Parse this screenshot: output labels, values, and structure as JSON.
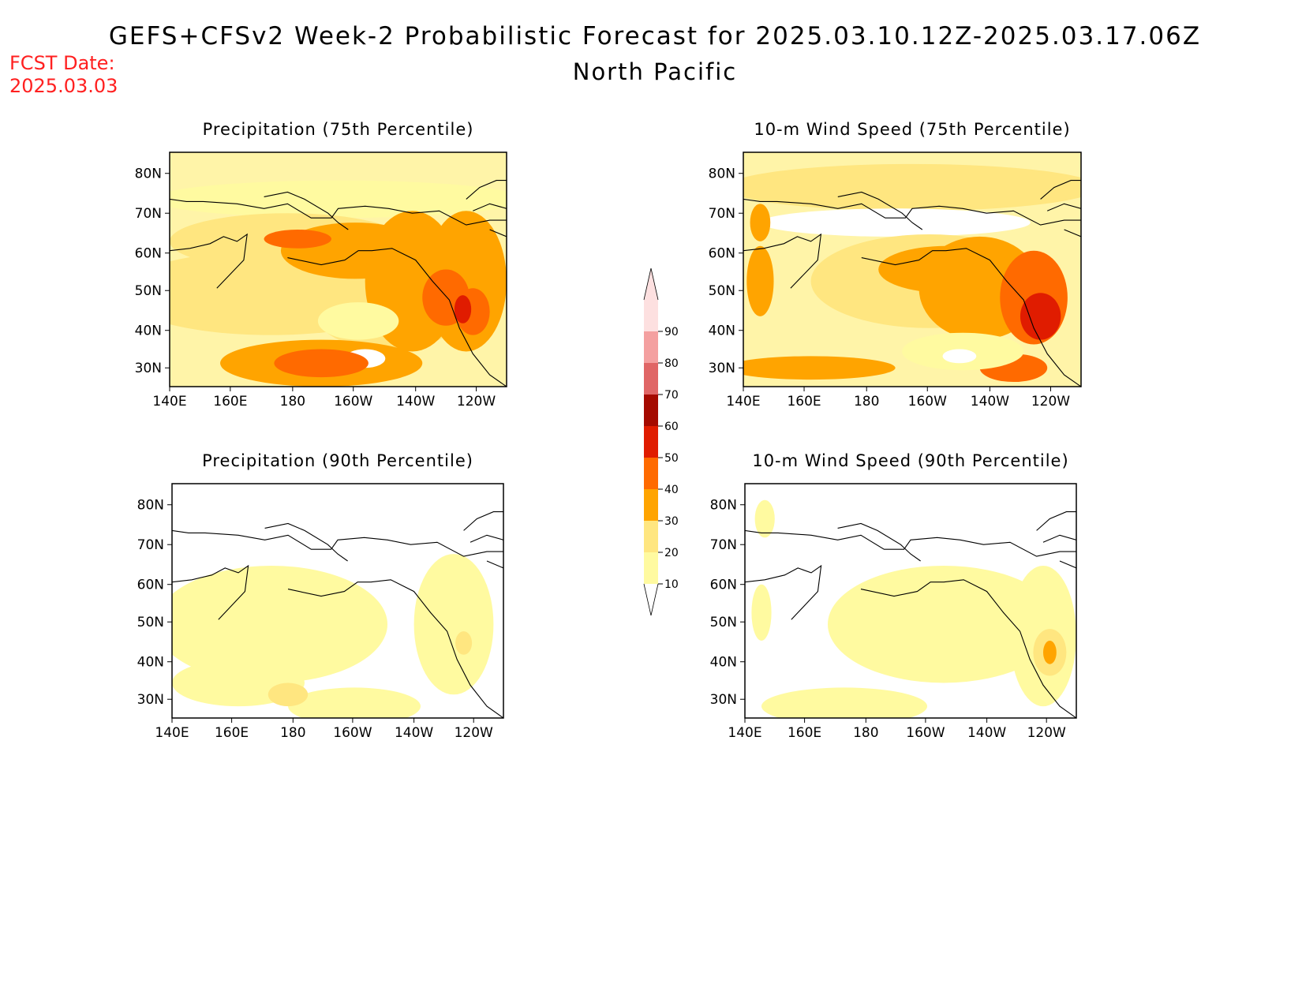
{
  "header": {
    "title": "GEFS+CFSv2 Week-2 Probabilistic Forecast for 2025.03.10.12Z-2025.03.17.06Z",
    "region": "North Pacific",
    "fcst_label": "FCST Date:",
    "fcst_date": "2025.03.03"
  },
  "colorbar": {
    "levels": [
      "10",
      "20",
      "30",
      "40",
      "50",
      "60",
      "70",
      "80",
      "90"
    ],
    "colors": [
      "#fffaa0",
      "#ffe680",
      "#ffa400",
      "#ff6a00",
      "#e01c00",
      "#a50a00",
      "#e06666",
      "#f4a0a0",
      "#fde0e0"
    ]
  },
  "axes": {
    "lat_labels": [
      "80N",
      "70N",
      "60N",
      "50N",
      "40N",
      "30N"
    ],
    "lon_labels": [
      "140E",
      "160E",
      "180",
      "160W",
      "140W",
      "120W"
    ]
  },
  "panels": [
    {
      "id": "precip75",
      "title": "Precipitation (75th Percentile)",
      "base": "#fff4a8"
    },
    {
      "id": "wind75",
      "title": "10-m Wind Speed (75th Percentile)",
      "base": "#fff4a8"
    },
    {
      "id": "precip90",
      "title": "Precipitation (90th Percentile)",
      "base": "#ffffff"
    },
    {
      "id": "wind90",
      "title": "10-m Wind Speed (90th Percentile)",
      "base": "#ffffff"
    }
  ]
}
